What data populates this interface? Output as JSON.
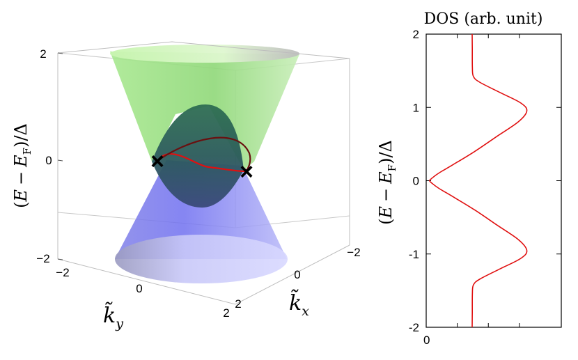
{
  "chart_data": [
    {
      "type": "surface3d",
      "zlabel": "(E − E_F)/Δ",
      "zlabel_parts": {
        "lead": "(",
        "E1": "E",
        "minus": "−",
        "E2": "E",
        "sub": "F",
        "tail": ")/Δ"
      },
      "xlabel": "k̃_x",
      "xlabel_parts": {
        "k": "k̃",
        "sub": "x"
      },
      "ylabel": "k̃_y",
      "ylabel_parts": {
        "k": "k̃",
        "sub": "y"
      },
      "z_ticks": [
        "2",
        "0",
        "−2"
      ],
      "kx_ticks": [
        "−2",
        "0",
        "2"
      ],
      "ky_ticks": [
        "−2",
        "0",
        "2"
      ],
      "zlim": [
        -2,
        2
      ],
      "kx_range": [
        -2,
        2
      ],
      "ky_range": [
        -2,
        2
      ],
      "surfaces": [
        {
          "name": "upper",
          "color": "#8fd878"
        },
        {
          "name": "lower",
          "color": "#7c7cf0"
        }
      ],
      "crossing_curve_color": "#e01010",
      "markers": [
        "×",
        "×"
      ]
    },
    {
      "type": "line",
      "title": "DOS (arb. unit)",
      "ylabel": "(E − E_F)/Δ",
      "ylim": [
        -2,
        2
      ],
      "yticks": [
        "2",
        "1",
        "0",
        "-1",
        "-2"
      ],
      "xticks": [
        "0"
      ],
      "color": "#e01010",
      "series": [
        {
          "x": [
            0.34,
            0.341,
            0.342,
            0.35,
            0.4,
            0.55,
            0.7,
            0.745,
            0.68,
            0.52,
            0.36,
            0.2,
            0.09,
            0.04,
            0.025,
            0.04,
            0.09,
            0.2,
            0.36,
            0.52,
            0.68,
            0.745,
            0.7,
            0.55,
            0.4,
            0.35,
            0.342,
            0.341,
            0.34
          ],
          "y": [
            2.0,
            1.8,
            1.55,
            1.42,
            1.34,
            1.2,
            1.06,
            0.95,
            0.8,
            0.6,
            0.4,
            0.22,
            0.1,
            0.03,
            0.0,
            -0.03,
            -0.1,
            -0.22,
            -0.4,
            -0.6,
            -0.8,
            -0.95,
            -1.06,
            -1.2,
            -1.34,
            -1.42,
            -1.55,
            -1.8,
            -2.0
          ]
        }
      ]
    }
  ]
}
